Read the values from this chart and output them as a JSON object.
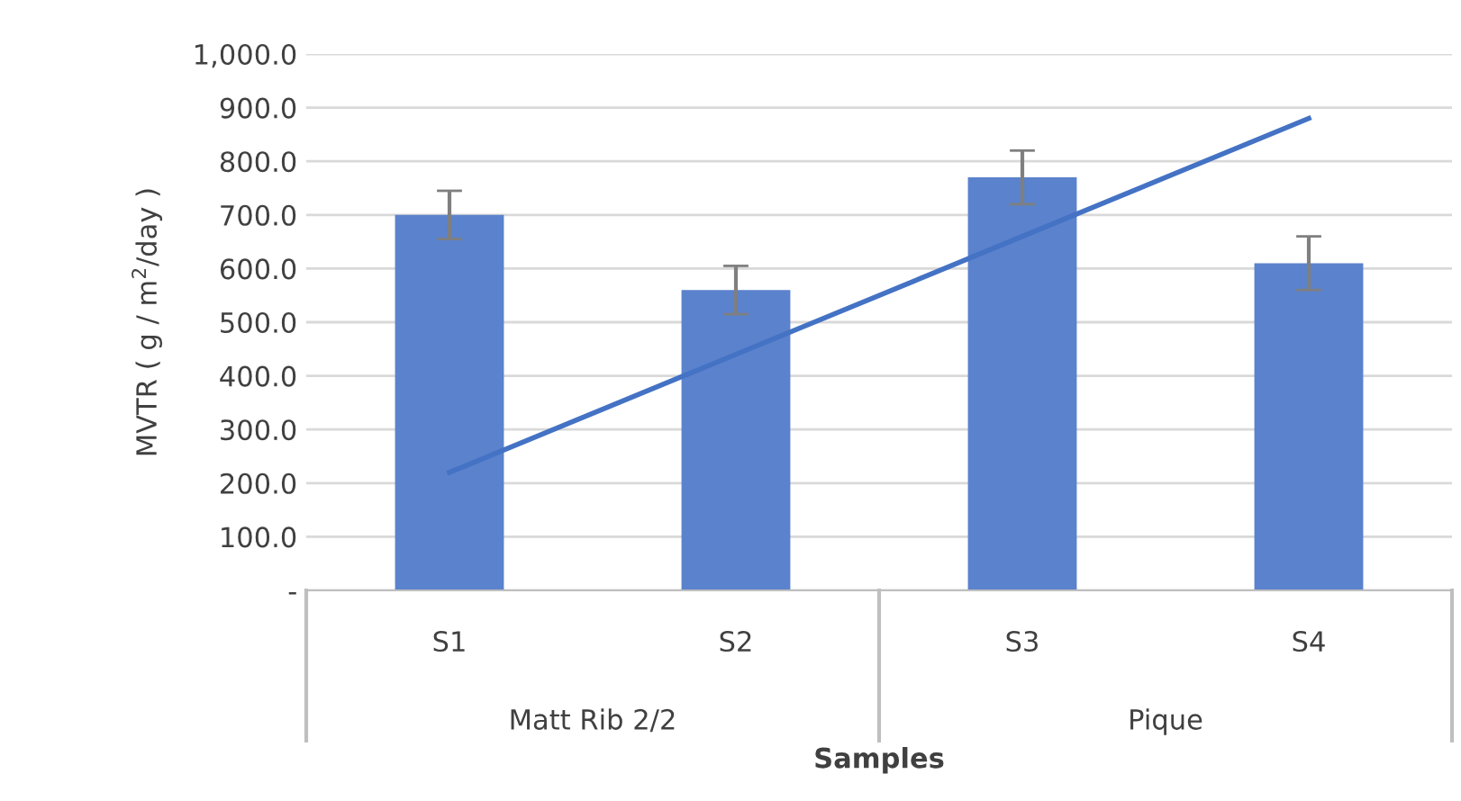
{
  "chart_data": {
    "type": "bar",
    "ylabel": "MVTR ( g / m$^{2}$/day )",
    "xlabel": "Samples",
    "categories": [
      "S1",
      "S2",
      "S3",
      "S4"
    ],
    "series": [
      {
        "color": "#5b82cc",
        "values": [
          700,
          560,
          770,
          610
        ],
        "errors": [
          45,
          45,
          50,
          50
        ]
      },
      {
        "type": "line",
        "color": "#4472c4",
        "values": [
          220,
          440,
          660,
          880
        ]
      }
    ],
    "annotations": [
      "Matt Rib 2/2",
      "Pique"
    ],
    "ylim": [
      0,
      1000
    ],
    "yticks": [
      {
        "value": 0,
        "label": "-"
      },
      {
        "value": 100,
        "label": "100.0"
      },
      {
        "value": 200,
        "label": "200.0"
      },
      {
        "value": 300,
        "label": "300.0"
      },
      {
        "value": 400,
        "label": "400.0"
      },
      {
        "value": 500,
        "label": "500.0"
      },
      {
        "value": 600,
        "label": "600.0"
      },
      {
        "value": 700,
        "label": "700.0"
      },
      {
        "value": 800,
        "label": "800.0"
      },
      {
        "value": 900,
        "label": "900.0"
      },
      {
        "value": 1000,
        "label": "1,000.0"
      }
    ],
    "grid": "y",
    "legend": false
  }
}
